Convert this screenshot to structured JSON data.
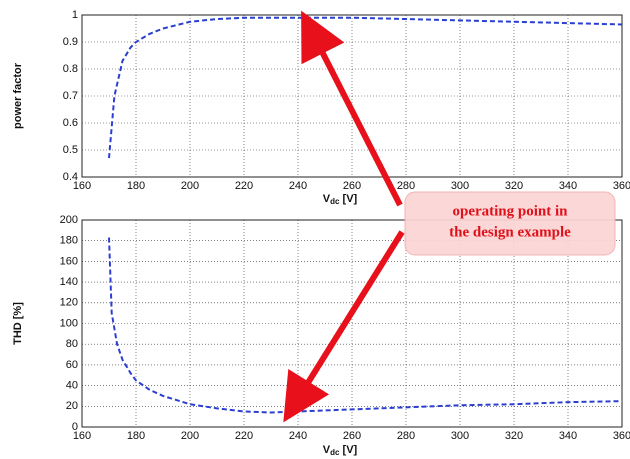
{
  "chart_data": [
    {
      "type": "line",
      "ylabel": "power factor",
      "xlabel": "V",
      "xlabel_sub": "dc",
      "xlabel_unit": " [V]",
      "xlim": [
        160,
        360
      ],
      "xticks": [
        160,
        180,
        200,
        220,
        240,
        260,
        280,
        300,
        320,
        340,
        360
      ],
      "ylim": [
        0.4,
        1
      ],
      "yticks": [
        0.4,
        0.5,
        0.6,
        0.7,
        0.8,
        0.9,
        1
      ],
      "grid": true,
      "series": [
        {
          "color": "#2a3fd0",
          "x": [
            170,
            172,
            175,
            178,
            180,
            185,
            190,
            200,
            210,
            220,
            240,
            260,
            280,
            300,
            320,
            340,
            360
          ],
          "values": [
            0.47,
            0.7,
            0.83,
            0.88,
            0.9,
            0.93,
            0.95,
            0.975,
            0.985,
            0.99,
            0.99,
            0.99,
            0.985,
            0.98,
            0.975,
            0.97,
            0.965
          ]
        }
      ]
    },
    {
      "type": "line",
      "ylabel": "THD [%]",
      "xlabel": "V",
      "xlabel_sub": "dc",
      "xlabel_unit": " [V]",
      "xlim": [
        160,
        360
      ],
      "xticks": [
        160,
        180,
        200,
        220,
        240,
        260,
        280,
        300,
        320,
        340,
        360
      ],
      "ylim": [
        0,
        200
      ],
      "yticks": [
        0,
        20,
        40,
        60,
        80,
        100,
        120,
        140,
        160,
        180,
        200
      ],
      "grid": true,
      "series": [
        {
          "color": "#2a3fd0",
          "x": [
            170,
            171,
            173,
            175,
            178,
            180,
            185,
            190,
            200,
            210,
            220,
            230,
            240,
            260,
            280,
            300,
            320,
            340,
            360
          ],
          "values": [
            183,
            110,
            80,
            65,
            52,
            45,
            36,
            30,
            22,
            18,
            15,
            14,
            15,
            17,
            19,
            21,
            22,
            24,
            25
          ]
        }
      ]
    }
  ],
  "annotation": {
    "lines": [
      "operating point in",
      "the design example"
    ]
  }
}
